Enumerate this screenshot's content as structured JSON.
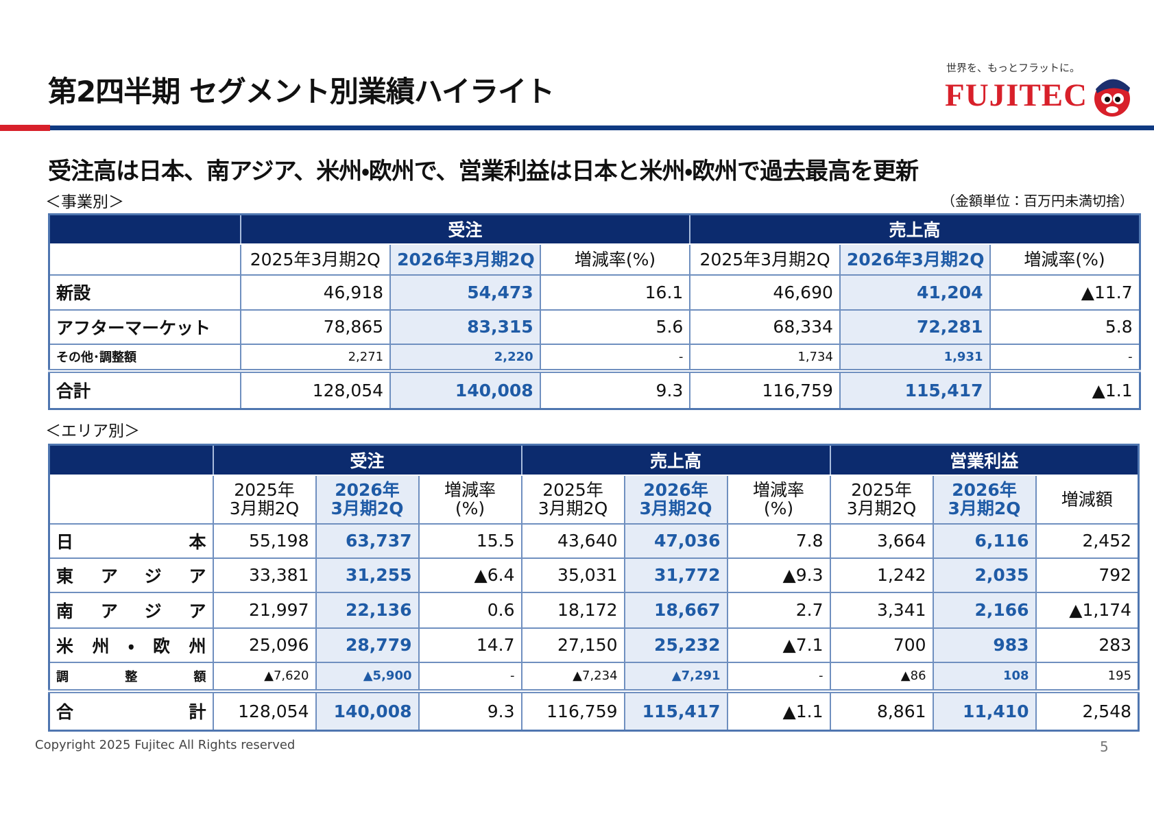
{
  "header": {
    "title": "第2四半期 セグメント別業績ハイライト",
    "tagline": "世界を、もっとフラットに。",
    "logo": "FUJITEC"
  },
  "subtitle": "受注高は日本、南アジア、米州・欧州で、営業利益は日本と米州・欧州で過去最高を更新",
  "business": {
    "label": "＜事業別＞",
    "unit_note": "（金額単位：百万円未満切捨）",
    "groups": [
      "受注",
      "売上高"
    ],
    "columns": [
      "2025年3月期2Q",
      "2026年3月期2Q",
      "増減率(%)",
      "2025年3月期2Q",
      "2026年3月期2Q",
      "増減率(%)"
    ],
    "rows": [
      [
        "新設",
        "46,918",
        "54,473",
        "16.1",
        "46,690",
        "41,204",
        "▲11.7"
      ],
      [
        "アフターマーケット",
        "78,865",
        "83,315",
        "5.6",
        "68,334",
        "72,281",
        "5.8"
      ],
      [
        "その他･調整額",
        "2,271",
        "2,220",
        "-",
        "1,734",
        "1,931",
        "-"
      ],
      [
        "合計",
        "128,054",
        "140,008",
        "9.3",
        "116,759",
        "115,417",
        "▲1.1"
      ]
    ]
  },
  "area": {
    "label": "＜エリア別＞",
    "groups": [
      "受注",
      "売上高",
      "営業利益"
    ],
    "columns": [
      [
        "2025年",
        "3月期2Q"
      ],
      [
        "2026年",
        "3月期2Q"
      ],
      [
        "増減率",
        "(%)"
      ],
      [
        "2025年",
        "3月期2Q"
      ],
      [
        "2026年",
        "3月期2Q"
      ],
      [
        "増減率",
        "(%)"
      ],
      [
        "2025年",
        "3月期2Q"
      ],
      [
        "2026年",
        "3月期2Q"
      ],
      [
        "増減額"
      ]
    ],
    "rows": [
      [
        "日本",
        "55,198",
        "63,737",
        "15.5",
        "43,640",
        "47,036",
        "7.8",
        "3,664",
        "6,116",
        "2,452"
      ],
      [
        "東アジア",
        "33,381",
        "31,255",
        "▲6.4",
        "35,031",
        "31,772",
        "▲9.3",
        "1,242",
        "2,035",
        "792"
      ],
      [
        "南アジア",
        "21,997",
        "22,136",
        "0.6",
        "18,172",
        "18,667",
        "2.7",
        "3,341",
        "2,166",
        "▲1,174"
      ],
      [
        "米州・欧州",
        "25,096",
        "28,779",
        "14.7",
        "27,150",
        "25,232",
        "▲7.1",
        "700",
        "983",
        "283"
      ],
      [
        "調整額",
        "▲7,620",
        "▲5,900",
        "-",
        "▲7,234",
        "▲7,291",
        "-",
        "▲86",
        "108",
        "195"
      ],
      [
        "合計",
        "128,054",
        "140,008",
        "9.3",
        "116,759",
        "115,417",
        "▲1.1",
        "8,861",
        "11,410",
        "2,548"
      ]
    ]
  },
  "footer": {
    "copyright": "Copyright 2025 Fujitec All Rights reserved",
    "page": "5"
  }
}
